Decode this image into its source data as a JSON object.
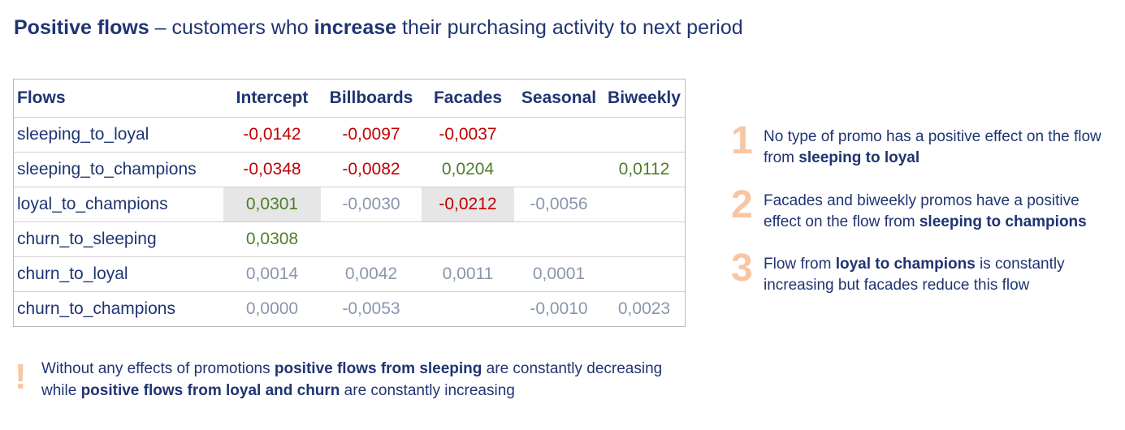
{
  "title": {
    "bold1": "Positive flows",
    "mid1": " – customers who ",
    "bold2": "increase",
    "mid2": " their purchasing activity to next period"
  },
  "table": {
    "headers": [
      "Flows",
      "Intercept",
      "Billboards",
      "Facades",
      "Seasonal",
      "Biweekly"
    ],
    "rows": [
      {
        "name": "sleeping_to_loyal",
        "cells": [
          "-0,0142",
          "-0,0097",
          "-0,0037",
          "",
          ""
        ]
      },
      {
        "name": "sleeping_to_champions",
        "cells": [
          "-0,0348",
          "-0,0082",
          "0,0204",
          "",
          "0,0112"
        ]
      },
      {
        "name": "loyal_to_champions",
        "cells": [
          "0,0301",
          "-0,0030",
          "-0,0212",
          "-0,0056",
          ""
        ]
      },
      {
        "name": "churn_to_sleeping",
        "cells": [
          "0,0308",
          "",
          "",
          "",
          ""
        ]
      },
      {
        "name": "churn_to_loyal",
        "cells": [
          "0,0014",
          "0,0042",
          "0,0011",
          "0,0001",
          ""
        ]
      },
      {
        "name": "churn_to_champions",
        "cells": [
          "0,0000",
          "-0,0053",
          "",
          "-0,0010",
          "0,0023"
        ]
      }
    ]
  },
  "colors": {
    "negative": "#c00000",
    "positive": "#4f7d2a",
    "insignificant": "#8a96ad",
    "highlight": "#e6e6e6",
    "accent_number": "#f7c6a3",
    "text_navy": "#1f3472"
  },
  "insights": [
    {
      "number": "1",
      "text1": "No type of promo has a positive effect on the flow from ",
      "bold": "sleeping to loyal",
      "text2": ""
    },
    {
      "number": "2",
      "text1": "Facades and biweekly promos have a positive effect on the flow from ",
      "bold": "sleeping to champions",
      "text2": ""
    },
    {
      "number": "3",
      "text1": "Flow from ",
      "bold": "loyal to champions",
      "text2": " is constantly increasing but facades reduce this flow"
    }
  ],
  "note": {
    "mark": "!",
    "t1": "Without any effects of promotions ",
    "b1": "positive flows from sleeping",
    "t2": " are constantly decreasing while ",
    "b2": "positive flows from loyal and churn",
    "t3": " are constantly increasing"
  }
}
